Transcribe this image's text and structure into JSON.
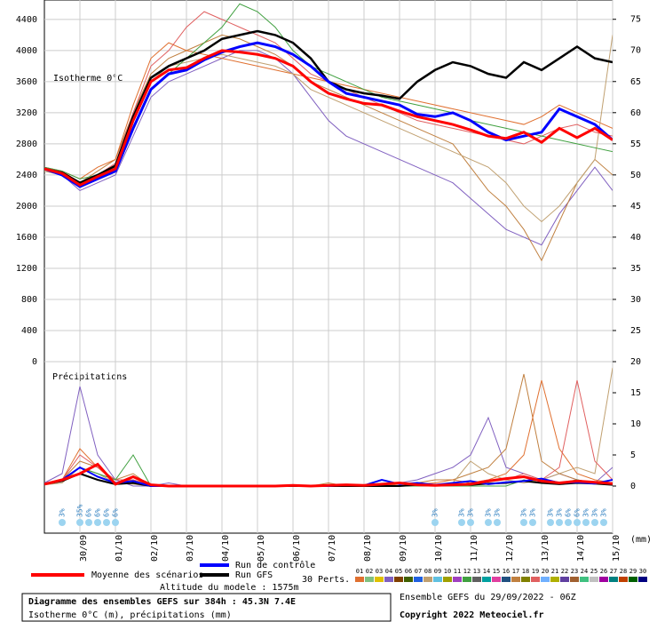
{
  "chart_data": [
    {
      "type": "line",
      "label": "Isotherme 0°C",
      "xlim": [
        0,
        384
      ],
      "xticks": [
        {
          "value": 24,
          "label": "30/09"
        },
        {
          "value": 48,
          "label": "01/10"
        },
        {
          "value": 72,
          "label": "02/10"
        },
        {
          "value": 96,
          "label": "03/10"
        },
        {
          "value": 120,
          "label": "04/10"
        },
        {
          "value": 144,
          "label": "05/10"
        },
        {
          "value": 168,
          "label": "06/10"
        },
        {
          "value": 192,
          "label": "07/10"
        },
        {
          "value": 216,
          "label": "08/10"
        },
        {
          "value": 240,
          "label": "09/10"
        },
        {
          "value": 264,
          "label": "10/10"
        },
        {
          "value": 288,
          "label": "11/10"
        },
        {
          "value": 312,
          "label": "12/10"
        },
        {
          "value": 336,
          "label": "13/10"
        },
        {
          "value": 360,
          "label": "14/10"
        },
        {
          "value": 384,
          "label": "15/10"
        }
      ],
      "ylim": [
        0,
        4650
      ],
      "yticks": [
        0,
        400,
        800,
        1200,
        1600,
        2000,
        2400,
        2800,
        3200,
        3600,
        4000,
        4400
      ],
      "y2lim": [
        20,
        78.1
      ],
      "y2ticks": [
        25,
        30,
        35,
        40,
        45,
        50,
        55,
        60,
        65,
        70,
        75
      ],
      "grid": true,
      "x": [
        0,
        12,
        24,
        36,
        48,
        60,
        72,
        84,
        96,
        108,
        120,
        132,
        144,
        156,
        168,
        180,
        192,
        204,
        216,
        228,
        240,
        252,
        264,
        276,
        288,
        300,
        312,
        324,
        336,
        348,
        360,
        372,
        384
      ],
      "series": [
        {
          "name": "04",
          "color": "#8060c0",
          "width": 1,
          "values": [
            2500,
            2400,
            2200,
            2300,
            2400,
            2900,
            3400,
            3600,
            3700,
            3800,
            3900,
            4000,
            4000,
            3900,
            3700,
            3400,
            3100,
            2900,
            2800,
            2700,
            2600,
            2500,
            2400,
            2300,
            2100,
            1900,
            1700,
            1600,
            1500,
            1900,
            2200,
            2500,
            2200
          ]
        },
        {
          "name": "17",
          "color": "#c08040",
          "width": 1,
          "values": [
            2450,
            2400,
            2300,
            2450,
            2600,
            3200,
            3700,
            3900,
            4000,
            4100,
            4200,
            4150,
            4050,
            3950,
            3800,
            3600,
            3500,
            3400,
            3300,
            3200,
            3100,
            3000,
            2900,
            2800,
            2500,
            2200,
            2000,
            1700,
            1300,
            1800,
            2300,
            2600,
            2400
          ]
        },
        {
          "name": "01",
          "color": "#e07030",
          "width": 1,
          "values": [
            2500,
            2450,
            2350,
            2500,
            2600,
            3300,
            3900,
            4100,
            4000,
            3950,
            3900,
            3850,
            3800,
            3750,
            3700,
            3650,
            3600,
            3550,
            3500,
            3450,
            3400,
            3350,
            3300,
            3250,
            3200,
            3150,
            3100,
            3050,
            3150,
            3300,
            3200,
            3100,
            3000
          ]
        },
        {
          "name": "08",
          "color": "#c0a070",
          "width": 1,
          "values": [
            2450,
            2400,
            2300,
            2350,
            2500,
            3100,
            3600,
            3800,
            3850,
            3900,
            3950,
            3900,
            3850,
            3800,
            3700,
            3500,
            3400,
            3300,
            3200,
            3100,
            3000,
            2900,
            2800,
            2700,
            2600,
            2500,
            2300,
            2000,
            1800,
            2000,
            2300,
            2600,
            4200
          ]
        },
        {
          "name": "19",
          "color": "#e06060",
          "width": 1,
          "values": [
            2500,
            2450,
            2300,
            2400,
            2550,
            3200,
            3800,
            4000,
            4300,
            4500,
            4400,
            4300,
            4200,
            4100,
            3900,
            3700,
            3600,
            3500,
            3400,
            3300,
            3200,
            3100,
            3050,
            3000,
            2950,
            2900,
            2850,
            2800,
            2900,
            3000,
            3050,
            2950,
            2900
          ]
        },
        {
          "name": "12",
          "color": "#40a040",
          "width": 1,
          "values": [
            2500,
            2450,
            2350,
            2400,
            2500,
            3000,
            3500,
            3700,
            3900,
            4100,
            4300,
            4600,
            4500,
            4300,
            4000,
            3800,
            3700,
            3600,
            3500,
            3400,
            3350,
            3300,
            3250,
            3200,
            3100,
            3050,
            3000,
            2950,
            2900,
            2850,
            2800,
            2750,
            2700
          ]
        },
        {
          "name": "Run GFS",
          "color": "#000000",
          "width": 2.5,
          "values": [
            2480,
            2430,
            2300,
            2400,
            2520,
            3150,
            3650,
            3800,
            3900,
            4000,
            4150,
            4200,
            4250,
            4200,
            4100,
            3900,
            3600,
            3500,
            3450,
            3420,
            3380,
            3600,
            3750,
            3850,
            3800,
            3700,
            3650,
            3850,
            3750,
            3900,
            4050,
            3900,
            3850
          ]
        },
        {
          "name": "Run de contrôle",
          "color": "#0000ff",
          "width": 3,
          "values": [
            2480,
            2400,
            2250,
            2350,
            2450,
            3000,
            3500,
            3700,
            3750,
            3880,
            3980,
            4050,
            4100,
            4050,
            3950,
            3800,
            3600,
            3450,
            3400,
            3350,
            3300,
            3180,
            3150,
            3200,
            3100,
            2950,
            2850,
            2900,
            2950,
            3250,
            3150,
            3050,
            2850
          ]
        },
        {
          "name": "Moyenne des scénarios",
          "color": "#ff0000",
          "width": 3,
          "values": [
            2480,
            2420,
            2270,
            2380,
            2480,
            3100,
            3600,
            3750,
            3780,
            3900,
            4000,
            3980,
            3950,
            3900,
            3800,
            3600,
            3450,
            3380,
            3320,
            3300,
            3220,
            3150,
            3100,
            3050,
            2980,
            2900,
            2870,
            2950,
            2820,
            3000,
            2880,
            3000,
            2850
          ]
        }
      ]
    },
    {
      "type": "line",
      "label": "Précipitations",
      "unit": "(mm)",
      "xlim": [
        0,
        384
      ],
      "ylim": [
        0,
        20
      ],
      "y2ticks": [
        0,
        5,
        10,
        15,
        20
      ],
      "x": [
        0,
        12,
        24,
        36,
        48,
        60,
        72,
        84,
        96,
        108,
        120,
        132,
        144,
        156,
        168,
        180,
        192,
        204,
        216,
        228,
        240,
        252,
        264,
        276,
        288,
        300,
        312,
        324,
        336,
        348,
        360,
        372,
        384
      ],
      "series": [
        {
          "name": "04",
          "color": "#8060c0",
          "width": 1,
          "values": [
            0.5,
            2,
            16,
            5,
            1,
            0,
            0,
            0.5,
            0,
            0,
            0,
            0,
            0,
            0,
            0,
            0,
            0,
            0,
            0,
            0,
            0.5,
            1,
            2,
            3,
            5,
            11,
            3,
            2,
            1,
            2,
            1,
            0.5,
            3
          ]
        },
        {
          "name": "17",
          "color": "#c08040",
          "width": 1,
          "values": [
            0.3,
            1,
            4,
            3,
            1,
            2,
            0,
            0,
            0,
            0,
            0,
            0,
            0,
            0,
            0,
            0,
            0.5,
            0,
            0,
            0,
            0.3,
            0.5,
            1,
            1,
            2,
            3,
            6,
            18,
            4,
            2,
            1,
            0.5,
            0.3
          ]
        },
        {
          "name": "01",
          "color": "#e07030",
          "width": 1,
          "values": [
            0.2,
            1,
            6,
            3,
            0.5,
            1,
            0.2,
            0,
            0,
            0,
            0,
            0,
            0,
            0,
            0,
            0,
            0,
            0,
            0,
            0,
            0,
            0.3,
            0.5,
            1,
            0.5,
            1,
            2,
            5,
            17,
            6,
            2,
            1,
            0.5
          ]
        },
        {
          "name": "08",
          "color": "#c0a070",
          "width": 1,
          "values": [
            0.2,
            0.5,
            3,
            2,
            0.5,
            0.3,
            0,
            0,
            0,
            0,
            0,
            0,
            0,
            0,
            0,
            0,
            0,
            0,
            0,
            0,
            0,
            0,
            0,
            0.5,
            4,
            2,
            1,
            0.5,
            1,
            2,
            3,
            2,
            19
          ]
        },
        {
          "name": "19",
          "color": "#e06060",
          "width": 1,
          "values": [
            0.3,
            1,
            5,
            3,
            1,
            1,
            0,
            0,
            0,
            0,
            0,
            0,
            0,
            0,
            0,
            0,
            0,
            0,
            0,
            0,
            0,
            0,
            0,
            0,
            0.5,
            1,
            1,
            2,
            1,
            3,
            17,
            4,
            1
          ]
        },
        {
          "name": "12",
          "color": "#40a040",
          "width": 1,
          "values": [
            0.2,
            1,
            3,
            2,
            1,
            5,
            0,
            0,
            0,
            0,
            0,
            0,
            0,
            0,
            0,
            0,
            0,
            0,
            0,
            0,
            0,
            0,
            0,
            0,
            0,
            0,
            0,
            1,
            0.5,
            0.5,
            1,
            0.5,
            0.3
          ]
        },
        {
          "name": "Run GFS",
          "color": "#000000",
          "width": 2,
          "values": [
            0.3,
            0.8,
            2,
            1,
            0.3,
            0.5,
            0,
            0,
            0,
            0,
            0,
            0,
            0,
            0,
            0,
            0,
            0,
            0,
            0,
            0,
            0,
            0.2,
            0.2,
            0.3,
            0.2,
            0.4,
            0.5,
            0.8,
            0.5,
            0.3,
            0.5,
            0.4,
            0.2
          ]
        },
        {
          "name": "Run de contrôle",
          "color": "#0000ff",
          "width": 2,
          "values": [
            0.3,
            1,
            3,
            1.5,
            0.5,
            0.8,
            0,
            0,
            0,
            0,
            0,
            0,
            0,
            0,
            0.1,
            0,
            0,
            0.2,
            0.1,
            1,
            0.3,
            0.5,
            0.2,
            0.5,
            0.8,
            0.3,
            0.6,
            0.8,
            1.2,
            0.5,
            0.6,
            0.4,
            1
          ]
        },
        {
          "name": "Moyenne des scénarios",
          "color": "#ff0000",
          "width": 3,
          "values": [
            0.3,
            1,
            2,
            3.5,
            0.3,
            1.5,
            0.2,
            0,
            0,
            0,
            0,
            0,
            0,
            0,
            0.1,
            0,
            0.1,
            0.2,
            0.1,
            0.3,
            0.5,
            0.2,
            0.1,
            0.2,
            0.3,
            0.8,
            1.2,
            1.5,
            0.8,
            0.5,
            0.8,
            0.6,
            0.4
          ]
        }
      ]
    }
  ],
  "snow": [
    {
      "x": 12,
      "label": "3%"
    },
    {
      "x": 24,
      "label": "35%"
    },
    {
      "x": 30,
      "label": "6%"
    },
    {
      "x": 36,
      "label": "6%"
    },
    {
      "x": 42,
      "label": "6%"
    },
    {
      "x": 48,
      "label": "6%"
    },
    {
      "x": 264,
      "label": "3%"
    },
    {
      "x": 282,
      "label": "3%"
    },
    {
      "x": 288,
      "label": "3%"
    },
    {
      "x": 300,
      "label": "3%"
    },
    {
      "x": 306,
      "label": "3%"
    },
    {
      "x": 324,
      "label": "3%"
    },
    {
      "x": 330,
      "label": "3%"
    },
    {
      "x": 342,
      "label": "3%"
    },
    {
      "x": 348,
      "label": "3%"
    },
    {
      "x": 354,
      "label": "6%"
    },
    {
      "x": 360,
      "label": "6%"
    },
    {
      "x": 366,
      "label": "3%"
    },
    {
      "x": 372,
      "label": "3%"
    },
    {
      "x": 378,
      "label": "3%"
    }
  ],
  "perts_label": "30 Perts.",
  "members": [
    {
      "name": "01",
      "color": "#e07030"
    },
    {
      "name": "02",
      "color": "#80c080"
    },
    {
      "name": "03",
      "color": "#e0c000"
    },
    {
      "name": "04",
      "color": "#8060c0"
    },
    {
      "name": "05",
      "color": "#804000"
    },
    {
      "name": "06",
      "color": "#406000"
    },
    {
      "name": "07",
      "color": "#2060e0"
    },
    {
      "name": "08",
      "color": "#c0a070"
    },
    {
      "name": "09",
      "color": "#60c0e0"
    },
    {
      "name": "10",
      "color": "#a0a000"
    },
    {
      "name": "11",
      "color": "#a040c0"
    },
    {
      "name": "12",
      "color": "#40a040"
    },
    {
      "name": "13",
      "color": "#606060"
    },
    {
      "name": "14",
      "color": "#00a0a0"
    },
    {
      "name": "15",
      "color": "#e040a0"
    },
    {
      "name": "16",
      "color": "#205080"
    },
    {
      "name": "17",
      "color": "#c08040"
    },
    {
      "name": "18",
      "color": "#808000"
    },
    {
      "name": "19",
      "color": "#e06060"
    },
    {
      "name": "20",
      "color": "#70b0ff"
    },
    {
      "name": "21",
      "color": "#b0b000"
    },
    {
      "name": "22",
      "color": "#6040a0"
    },
    {
      "name": "23",
      "color": "#a06030"
    },
    {
      "name": "24",
      "color": "#40c080"
    },
    {
      "name": "25",
      "color": "#c0c0c0"
    },
    {
      "name": "26",
      "color": "#a000a0"
    },
    {
      "name": "27",
      "color": "#008080"
    },
    {
      "name": "28",
      "color": "#c04000"
    },
    {
      "name": "29",
      "color": "#006000"
    },
    {
      "name": "30",
      "color": "#000080"
    }
  ],
  "altitude": "Altitude du modele : 1575m",
  "footer": {
    "title": "Diagramme des ensembles GEFS sur 384h : 45.3N 7.4E",
    "subtitle": "Isotherme 0°C (m), précipitations (mm)",
    "run": "Ensemble GEFS du 29/09/2022 - 06Z",
    "copyright": "Copyright 2022 Meteociel.fr"
  }
}
